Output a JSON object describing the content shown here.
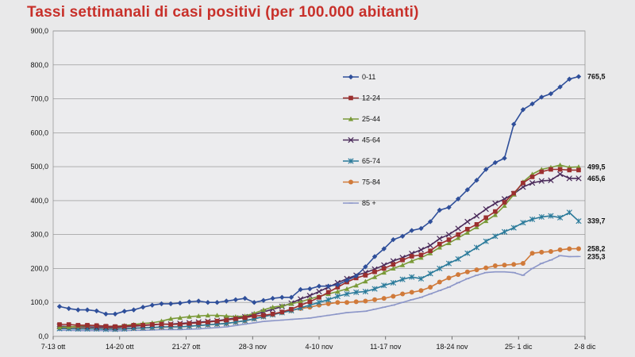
{
  "title": "Tassi settimanali di casi positivi (per 100.000 abitanti)",
  "chart_data": {
    "type": "line",
    "title": "Tassi settimanali di casi positivi (per 100.000 abitanti)",
    "ylim": [
      0,
      900
    ],
    "yticks": [
      "0,0",
      "100,0",
      "200,0",
      "300,0",
      "400,0",
      "500,0",
      "600,0",
      "700,0",
      "800,0",
      "900,0"
    ],
    "xlabels": [
      "7-13 ott",
      "14-20 ott",
      "21-27 ott",
      "28-3 nov",
      "4-10 nov",
      "11-17 nov",
      "18-24 nov",
      "25- 1 dic",
      "2-8 dic"
    ],
    "grid": true,
    "legend_position": "center-right",
    "series": [
      {
        "name": "0-11",
        "color": "#2f4f9a",
        "marker": "diamond",
        "end_label": "765,5",
        "values": [
          88,
          82,
          78,
          78,
          75,
          66,
          66,
          74,
          78,
          86,
          92,
          96,
          96,
          98,
          102,
          104,
          100,
          100,
          104,
          108,
          112,
          100,
          106,
          112,
          115,
          115,
          138,
          140,
          148,
          148,
          152,
          165,
          178,
          205,
          235,
          258,
          285,
          295,
          312,
          318,
          338,
          372,
          380,
          405,
          432,
          460,
          492,
          512,
          525,
          625,
          668,
          685,
          705,
          715,
          735,
          758,
          765.5
        ]
      },
      {
        "name": "12-24",
        "color": "#9b2f2f",
        "marker": "square",
        "end_label": "",
        "values": [
          35,
          35,
          33,
          33,
          32,
          30,
          29,
          30,
          33,
          33,
          35,
          36,
          35,
          36,
          38,
          40,
          42,
          45,
          48,
          52,
          55,
          60,
          62,
          66,
          72,
          80,
          92,
          102,
          115,
          130,
          145,
          160,
          172,
          180,
          190,
          200,
          212,
          225,
          236,
          240,
          252,
          272,
          285,
          300,
          316,
          330,
          350,
          368,
          395,
          422,
          452,
          470,
          485,
          492,
          492,
          490,
          490
        ]
      },
      {
        "name": "25-44",
        "color": "#7a9a38",
        "marker": "triangle",
        "end_label": "499,5",
        "values": [
          27,
          28,
          30,
          32,
          32,
          30,
          29,
          32,
          35,
          38,
          40,
          45,
          52,
          55,
          58,
          60,
          62,
          62,
          60,
          58,
          60,
          68,
          78,
          86,
          90,
          96,
          102,
          110,
          118,
          125,
          132,
          140,
          150,
          162,
          175,
          188,
          200,
          210,
          222,
          232,
          245,
          262,
          275,
          290,
          306,
          322,
          340,
          358,
          385,
          418,
          455,
          478,
          492,
          498,
          505,
          498,
          499.5
        ]
      },
      {
        "name": "45-64",
        "color": "#4a2a5a",
        "marker": "x",
        "end_label": "465,6",
        "values": [
          30,
          29,
          28,
          28,
          27,
          27,
          26,
          28,
          30,
          32,
          34,
          36,
          36,
          38,
          40,
          42,
          44,
          46,
          50,
          54,
          58,
          64,
          72,
          80,
          88,
          98,
          110,
          120,
          132,
          145,
          158,
          170,
          180,
          188,
          198,
          210,
          222,
          232,
          244,
          255,
          268,
          288,
          300,
          318,
          338,
          355,
          375,
          392,
          405,
          420,
          440,
          452,
          458,
          460,
          478,
          465.6,
          465.6
        ]
      },
      {
        "name": "65-74",
        "color": "#2a7a9a",
        "marker": "star",
        "end_label": "339,7",
        "values": [
          23,
          23,
          22,
          22,
          22,
          21,
          21,
          22,
          24,
          25,
          26,
          28,
          28,
          28,
          30,
          32,
          34,
          36,
          38,
          42,
          46,
          52,
          58,
          64,
          70,
          76,
          84,
          92,
          100,
          108,
          118,
          125,
          130,
          132,
          140,
          150,
          158,
          168,
          175,
          170,
          185,
          200,
          215,
          228,
          245,
          262,
          280,
          295,
          308,
          320,
          335,
          345,
          352,
          355,
          350,
          365,
          339.7
        ]
      },
      {
        "name": "75-84",
        "color": "#d07a3a",
        "marker": "circle",
        "end_label": "258,2",
        "values": [
          25,
          25,
          24,
          24,
          23,
          23,
          22,
          23,
          24,
          25,
          26,
          27,
          28,
          28,
          30,
          32,
          34,
          36,
          38,
          42,
          46,
          52,
          58,
          64,
          70,
          76,
          82,
          86,
          92,
          96,
          100,
          100,
          102,
          104,
          108,
          112,
          118,
          125,
          130,
          135,
          145,
          160,
          172,
          182,
          190,
          196,
          202,
          208,
          210,
          212,
          215,
          245,
          248,
          250,
          255,
          258,
          258.2
        ]
      },
      {
        "name": "85 +",
        "color": "#8c96c8",
        "marker": "dash",
        "end_label": "235,3",
        "values": [
          18,
          18,
          17,
          17,
          17,
          17,
          16,
          17,
          18,
          18,
          19,
          20,
          20,
          20,
          21,
          22,
          24,
          26,
          28,
          32,
          36,
          40,
          44,
          46,
          48,
          50,
          52,
          54,
          58,
          62,
          66,
          70,
          72,
          74,
          80,
          86,
          92,
          100,
          108,
          115,
          125,
          135,
          145,
          158,
          170,
          180,
          188,
          190,
          190,
          188,
          180,
          200,
          215,
          225,
          238,
          235,
          235.3
        ]
      }
    ]
  }
}
